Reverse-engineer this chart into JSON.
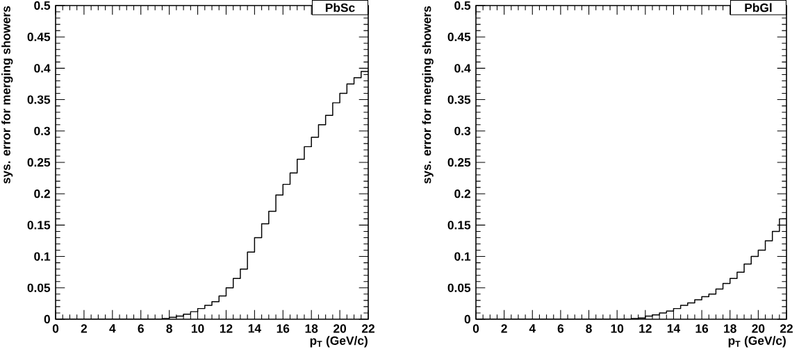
{
  "chart_data": [
    {
      "type": "step",
      "title": "PbSc",
      "xlabel": "p$_{T}$ (GeV/c)",
      "ylabel": "sys. error for merging showers",
      "xlim": [
        0,
        22
      ],
      "ylim": [
        0,
        0.5
      ],
      "xticks": [
        0,
        2,
        4,
        6,
        8,
        10,
        12,
        14,
        16,
        18,
        20,
        22
      ],
      "yticks": [
        0,
        0.05,
        0.1,
        0.15,
        0.2,
        0.25,
        0.3,
        0.35,
        0.4,
        0.45,
        0.5
      ],
      "x": [
        0,
        7.5,
        8,
        8.5,
        9,
        9.5,
        10,
        10.5,
        11,
        11.5,
        12,
        12.5,
        13,
        13.5,
        14,
        14.5,
        15,
        15.5,
        16,
        16.5,
        17,
        17.5,
        18,
        18.5,
        19,
        19.5,
        20,
        20.5,
        21,
        21.5,
        22
      ],
      "series": [
        {
          "color": "#000000",
          "values": [
            0,
            0,
            0.001,
            0.003,
            0.005,
            0.008,
            0.012,
            0.017,
            0.022,
            0.028,
            0.037,
            0.05,
            0.065,
            0.08,
            0.107,
            0.13,
            0.152,
            0.172,
            0.198,
            0.215,
            0.233,
            0.255,
            0.275,
            0.29,
            0.31,
            0.325,
            0.345,
            0.36,
            0.375,
            0.385,
            0.395
          ]
        }
      ]
    },
    {
      "type": "step",
      "title": "PbGl",
      "xlabel": "p$_{T}$ (GeV/c)",
      "ylabel": "sys. error for merging showers",
      "xlim": [
        0,
        22
      ],
      "ylim": [
        0,
        0.5
      ],
      "xticks": [
        0,
        2,
        4,
        6,
        8,
        10,
        12,
        14,
        16,
        18,
        20,
        22
      ],
      "yticks": [
        0,
        0.05,
        0.1,
        0.15,
        0.2,
        0.25,
        0.3,
        0.35,
        0.4,
        0.45,
        0.5
      ],
      "x": [
        0,
        10.5,
        11,
        11.5,
        12,
        12.5,
        13,
        13.5,
        14,
        14.5,
        15,
        15.5,
        16,
        16.5,
        17,
        17.5,
        18,
        18.5,
        19,
        19.5,
        20,
        20.5,
        21,
        21.5,
        22
      ],
      "series": [
        {
          "color": "#000000",
          "values": [
            0,
            0,
            0,
            0.001,
            0.002,
            0.005,
            0.007,
            0.01,
            0.013,
            0.017,
            0.022,
            0.026,
            0.031,
            0.036,
            0.04,
            0.048,
            0.057,
            0.065,
            0.075,
            0.088,
            0.1,
            0.11,
            0.125,
            0.14,
            0.16
          ]
        }
      ]
    }
  ]
}
